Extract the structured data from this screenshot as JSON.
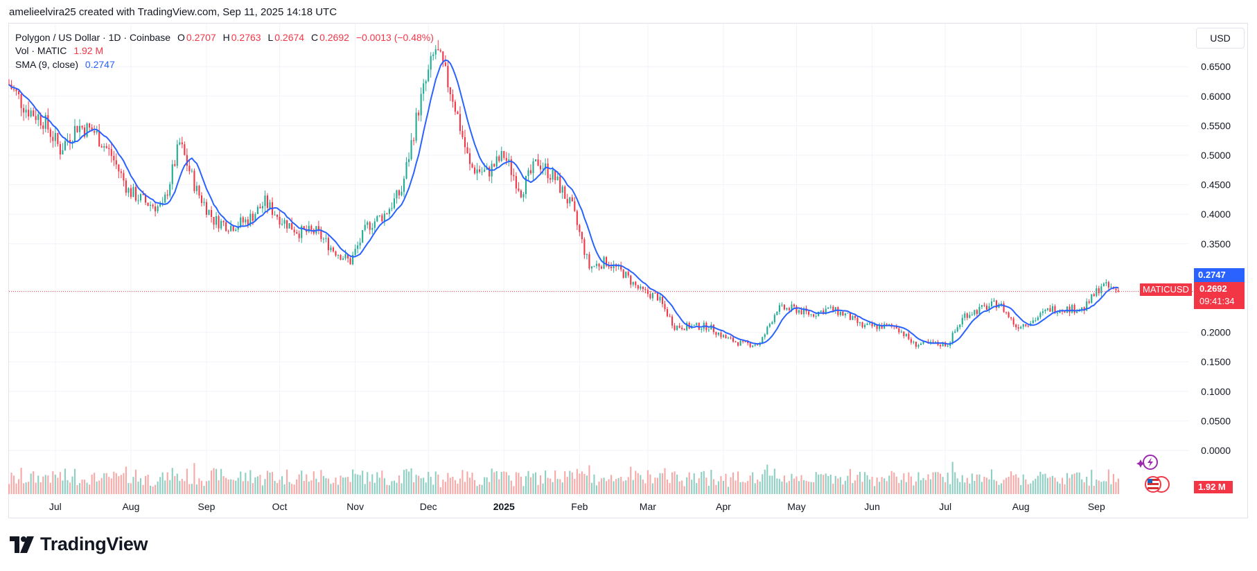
{
  "header": {
    "attribution": "amelieelvira25 created with TradingView.com, Sep 11, 2025 14:18 UTC"
  },
  "legend": {
    "symbol": "Polygon / US Dollar · 1D · Coinbase",
    "o_label": "O",
    "o_value": "0.2707",
    "h_label": "H",
    "h_value": "0.2763",
    "l_label": "L",
    "l_value": "0.2674",
    "c_label": "C",
    "c_value": "0.2692",
    "change": "−0.0013 (−0.48%)",
    "vol_label": "Vol · MATIC",
    "vol_value": "1.92 M",
    "sma_label": "SMA (9, close)",
    "sma_value": "0.2747"
  },
  "currency": "USD",
  "badges": {
    "sma": "0.2747",
    "symbol": "MATICUSD",
    "price": "0.2692",
    "countdown": "09:41:34",
    "volume": "1.92 M"
  },
  "branding": {
    "name": "TradingView"
  },
  "colors": {
    "up": "#22ab94",
    "down": "#f23645",
    "sma": "#2962ff",
    "vol_up": "#8ecfc3",
    "vol_down": "#f7a9a7"
  },
  "chart_data": {
    "type": "candlestick",
    "symbol": "MATICUSD",
    "interval": "1D",
    "x_tick_labels": [
      "Jul",
      "Aug",
      "Sep",
      "Oct",
      "Nov",
      "Dec",
      "2025",
      "Feb",
      "Mar",
      "Apr",
      "May",
      "Jun",
      "Jul",
      "Aug",
      "Sep"
    ],
    "y_tick_labels": [
      "0.6500",
      "0.6000",
      "0.5500",
      "0.5000",
      "0.4500",
      "0.4000",
      "0.3500",
      "0.2000",
      "0.1500",
      "0.1000",
      "0.0500",
      "0.0000"
    ],
    "ylim": [
      -0.045,
      0.712
    ],
    "last_price": 0.2692,
    "approx_weekly_close": [
      [
        "2024-06-12",
        0.62
      ],
      [
        "2024-06-19",
        0.58
      ],
      [
        "2024-06-26",
        0.56
      ],
      [
        "2024-07-03",
        0.51
      ],
      [
        "2024-07-10",
        0.55
      ],
      [
        "2024-07-17",
        0.54
      ],
      [
        "2024-07-24",
        0.5
      ],
      [
        "2024-07-31",
        0.44
      ],
      [
        "2024-08-07",
        0.42
      ],
      [
        "2024-08-14",
        0.41
      ],
      [
        "2024-08-21",
        0.52
      ],
      [
        "2024-08-28",
        0.44
      ],
      [
        "2024-09-04",
        0.39
      ],
      [
        "2024-09-11",
        0.38
      ],
      [
        "2024-09-18",
        0.39
      ],
      [
        "2024-09-25",
        0.42
      ],
      [
        "2024-10-02",
        0.39
      ],
      [
        "2024-10-09",
        0.37
      ],
      [
        "2024-10-16",
        0.37
      ],
      [
        "2024-10-23",
        0.34
      ],
      [
        "2024-10-30",
        0.32
      ],
      [
        "2024-11-06",
        0.38
      ],
      [
        "2024-11-13",
        0.4
      ],
      [
        "2024-11-20",
        0.44
      ],
      [
        "2024-11-27",
        0.58
      ],
      [
        "2024-12-04",
        0.68
      ],
      [
        "2024-12-11",
        0.6
      ],
      [
        "2024-12-18",
        0.48
      ],
      [
        "2024-12-25",
        0.47
      ],
      [
        "2025-01-01",
        0.5
      ],
      [
        "2025-01-08",
        0.44
      ],
      [
        "2025-01-15",
        0.49
      ],
      [
        "2025-01-22",
        0.46
      ],
      [
        "2025-01-29",
        0.41
      ],
      [
        "2025-02-05",
        0.31
      ],
      [
        "2025-02-12",
        0.32
      ],
      [
        "2025-02-19",
        0.3
      ],
      [
        "2025-02-26",
        0.27
      ],
      [
        "2025-03-05",
        0.26
      ],
      [
        "2025-03-12",
        0.21
      ],
      [
        "2025-03-19",
        0.21
      ],
      [
        "2025-03-26",
        0.21
      ],
      [
        "2025-04-02",
        0.19
      ],
      [
        "2025-04-09",
        0.18
      ],
      [
        "2025-04-16",
        0.18
      ],
      [
        "2025-04-23",
        0.24
      ],
      [
        "2025-04-30",
        0.24
      ],
      [
        "2025-05-07",
        0.23
      ],
      [
        "2025-05-14",
        0.24
      ],
      [
        "2025-05-21",
        0.23
      ],
      [
        "2025-05-28",
        0.21
      ],
      [
        "2025-06-04",
        0.21
      ],
      [
        "2025-06-11",
        0.21
      ],
      [
        "2025-06-18",
        0.18
      ],
      [
        "2025-06-25",
        0.18
      ],
      [
        "2025-07-02",
        0.18
      ],
      [
        "2025-07-09",
        0.23
      ],
      [
        "2025-07-16",
        0.24
      ],
      [
        "2025-07-23",
        0.25
      ],
      [
        "2025-07-30",
        0.21
      ],
      [
        "2025-08-06",
        0.22
      ],
      [
        "2025-08-13",
        0.24
      ],
      [
        "2025-08-20",
        0.24
      ],
      [
        "2025-08-27",
        0.24
      ],
      [
        "2025-09-03",
        0.28
      ],
      [
        "2025-09-10",
        0.2692
      ]
    ]
  }
}
